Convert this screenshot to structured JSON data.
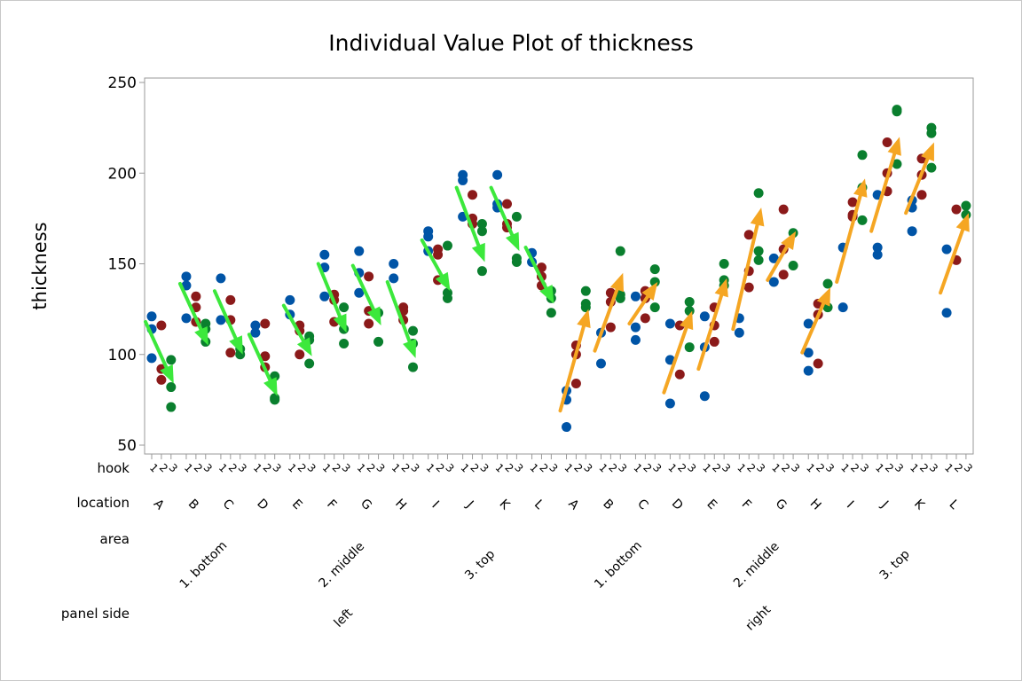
{
  "chart_data": {
    "type": "scatter",
    "title": "Individual Value Plot of thickness",
    "ylabel": "thickness",
    "ylim": [
      50,
      250
    ],
    "yticks": [
      50,
      100,
      150,
      200,
      250
    ],
    "grid": false,
    "legend": "none",
    "x_rows": [
      {
        "name": "hook",
        "labels": [
          "1",
          "2",
          "3"
        ]
      },
      {
        "name": "location"
      },
      {
        "name": "area"
      },
      {
        "name": "panel side"
      }
    ],
    "hook_colors": {
      "1": "#0054A6",
      "2": "#8B1A1A",
      "3": "#0A7F2E"
    },
    "panels": [
      {
        "side": "left",
        "arrow_color": "#3CE83C",
        "areas": [
          {
            "label": "1. bottom",
            "locations": [
              "A",
              "B",
              "C",
              "D"
            ]
          },
          {
            "label": "2. middle",
            "locations": [
              "E",
              "F",
              "G",
              "H"
            ]
          },
          {
            "label": "3. top",
            "locations": [
              "I",
              "J",
              "K",
              "L"
            ]
          }
        ],
        "data": {
          "A": {
            "1": [
              121,
              114,
              98
            ],
            "2": [
              116,
              92,
              86
            ],
            "3": [
              97,
              82,
              71
            ]
          },
          "B": {
            "1": [
              143,
              138,
              120
            ],
            "2": [
              132,
              126,
              118
            ],
            "3": [
              117,
              114,
              107
            ]
          },
          "C": {
            "1": [
              142,
              119
            ],
            "2": [
              130,
              119,
              101
            ],
            "3": [
              103,
              100
            ]
          },
          "D": {
            "1": [
              116,
              112
            ],
            "2": [
              117,
              99,
              93
            ],
            "3": [
              88,
              76,
              75
            ]
          },
          "E": {
            "1": [
              130,
              122
            ],
            "2": [
              116,
              113,
              100
            ],
            "3": [
              110,
              108,
              95
            ]
          },
          "F": {
            "1": [
              155,
              148,
              132
            ],
            "2": [
              133,
              130,
              118
            ],
            "3": [
              126,
              114,
              106
            ]
          },
          "G": {
            "1": [
              157,
              145,
              134
            ],
            "2": [
              143,
              124,
              117
            ],
            "3": [
              123,
              107
            ]
          },
          "H": {
            "1": [
              150,
              142
            ],
            "2": [
              126,
              124,
              119
            ],
            "3": [
              113,
              106,
              93
            ]
          },
          "I": {
            "1": [
              168,
              165,
              157
            ],
            "2": [
              158,
              155,
              141
            ],
            "3": [
              160,
              134,
              131
            ]
          },
          "J": {
            "1": [
              199,
              196,
              176
            ],
            "2": [
              188,
              175,
              172
            ],
            "3": [
              172,
              168,
              146
            ]
          },
          "K": {
            "1": [
              199,
              183,
              181
            ],
            "2": [
              183,
              172,
              170
            ],
            "3": [
              176,
              153,
              151
            ]
          },
          "L": {
            "1": [
              156,
              151
            ],
            "2": [
              148,
              143,
              138
            ],
            "3": [
              135,
              131,
              123
            ]
          }
        },
        "arrows": [
          {
            "location": "A",
            "from": 118,
            "to": 84
          },
          {
            "location": "B",
            "from": 139,
            "to": 105
          },
          {
            "location": "C",
            "from": 135,
            "to": 100
          },
          {
            "location": "D",
            "from": 111,
            "to": 77
          },
          {
            "location": "E",
            "from": 127,
            "to": 99
          },
          {
            "location": "F",
            "from": 150,
            "to": 112
          },
          {
            "location": "G",
            "from": 149,
            "to": 116
          },
          {
            "location": "H",
            "from": 140,
            "to": 98
          },
          {
            "location": "I",
            "from": 163,
            "to": 135
          },
          {
            "location": "J",
            "from": 192,
            "to": 151
          },
          {
            "location": "K",
            "from": 192,
            "to": 157
          },
          {
            "location": "L",
            "from": 159,
            "to": 128
          }
        ]
      },
      {
        "side": "right",
        "arrow_color": "#F5A623",
        "areas": [
          {
            "label": "1. bottom",
            "locations": [
              "A",
              "B",
              "C",
              "D"
            ]
          },
          {
            "label": "2. middle",
            "locations": [
              "E",
              "F",
              "G",
              "H"
            ]
          },
          {
            "label": "3. top",
            "locations": [
              "I",
              "J",
              "K",
              "L"
            ]
          }
        ],
        "data": {
          "A": {
            "1": [
              80,
              75,
              60
            ],
            "2": [
              105,
              100,
              84
            ],
            "3": [
              135,
              128,
              126
            ]
          },
          "B": {
            "1": [
              112,
              95
            ],
            "2": [
              134,
              129,
              115
            ],
            "3": [
              157,
              133,
              131
            ]
          },
          "C": {
            "1": [
              132,
              115,
              108
            ],
            "2": [
              135,
              131,
              120
            ],
            "3": [
              147,
              140,
              126
            ]
          },
          "D": {
            "1": [
              117,
              97,
              73
            ],
            "2": [
              116,
              89
            ],
            "3": [
              129,
              124,
              104
            ]
          },
          "E": {
            "1": [
              121,
              104,
              77
            ],
            "2": [
              126,
              116,
              107
            ],
            "3": [
              150,
              141,
              138
            ]
          },
          "F": {
            "1": [
              120,
              112
            ],
            "2": [
              166,
              146,
              137
            ],
            "3": [
              189,
              157,
              152
            ]
          },
          "G": {
            "1": [
              153,
              140
            ],
            "2": [
              180,
              158,
              144
            ],
            "3": [
              167,
              149
            ]
          },
          "H": {
            "1": [
              117,
              101,
              91
            ],
            "2": [
              128,
              122,
              95
            ],
            "3": [
              139,
              126
            ]
          },
          "I": {
            "1": [
              159,
              126
            ],
            "2": [
              184,
              177,
              176
            ],
            "3": [
              210,
              192,
              174
            ]
          },
          "J": {
            "1": [
              188,
              159,
              155
            ],
            "2": [
              217,
              200,
              190
            ],
            "3": [
              235,
              234,
              205
            ]
          },
          "K": {
            "1": [
              185,
              181,
              168
            ],
            "2": [
              208,
              199,
              188
            ],
            "3": [
              225,
              222,
              203
            ]
          },
          "L": {
            "1": [
              158,
              123
            ],
            "2": [
              180,
              152
            ],
            "3": [
              182,
              177
            ]
          }
        },
        "arrows": [
          {
            "location": "A",
            "from": 69,
            "to": 125
          },
          {
            "location": "B",
            "from": 102,
            "to": 145
          },
          {
            "location": "C",
            "from": 117,
            "to": 140
          },
          {
            "location": "D",
            "from": 79,
            "to": 124
          },
          {
            "location": "E",
            "from": 92,
            "to": 142
          },
          {
            "location": "F",
            "from": 114,
            "to": 181
          },
          {
            "location": "G",
            "from": 141,
            "to": 168
          },
          {
            "location": "H",
            "from": 101,
            "to": 137
          },
          {
            "location": "I",
            "from": 140,
            "to": 197
          },
          {
            "location": "J",
            "from": 168,
            "to": 220
          },
          {
            "location": "K",
            "from": 178,
            "to": 217
          },
          {
            "location": "L",
            "from": 134,
            "to": 178
          }
        ]
      }
    ]
  }
}
